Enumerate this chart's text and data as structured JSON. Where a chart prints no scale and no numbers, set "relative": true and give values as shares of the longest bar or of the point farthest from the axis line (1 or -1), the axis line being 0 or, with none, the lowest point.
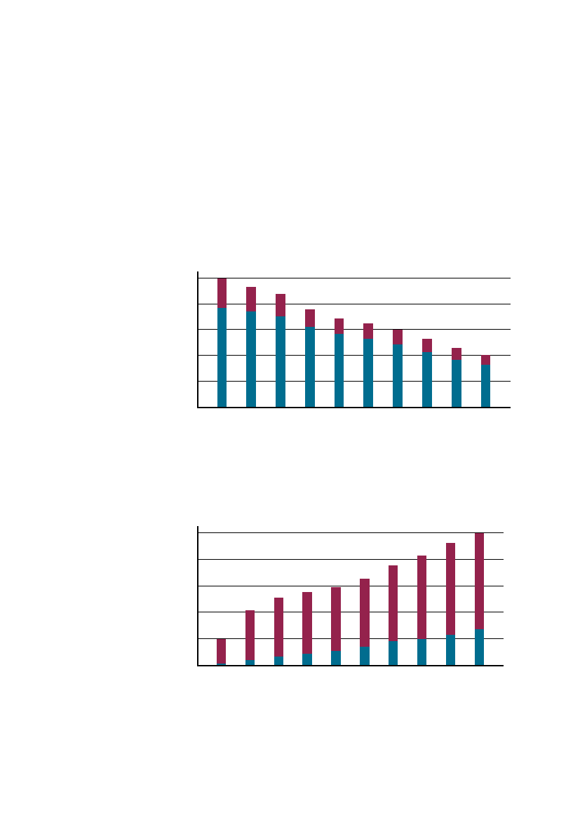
{
  "chart_data": [
    {
      "type": "bar",
      "stacked": true,
      "relative": true,
      "grid": "y",
      "categories": [
        null,
        null,
        null,
        null,
        null,
        null,
        null,
        null,
        null,
        null
      ],
      "series": [
        {
          "color": "#006d8f",
          "values": [
            0.771,
            0.742,
            0.706,
            0.62,
            0.566,
            0.53,
            0.487,
            0.425,
            0.368,
            0.329
          ]
        },
        {
          "color": "#94224c",
          "values": [
            0.229,
            0.19,
            0.17,
            0.137,
            0.119,
            0.117,
            0.114,
            0.102,
            0.088,
            0.074
          ]
        }
      ]
    },
    {
      "type": "bar",
      "stacked": true,
      "relative": true,
      "grid": "y",
      "categories": [
        null,
        null,
        null,
        null,
        null,
        null,
        null,
        null,
        null,
        null
      ],
      "series": [
        {
          "color": "#006d8f",
          "values": [
            0.012,
            0.036,
            0.065,
            0.085,
            0.105,
            0.138,
            0.182,
            0.198,
            0.231,
            0.271
          ]
        },
        {
          "color": "#94224c",
          "values": [
            0.186,
            0.377,
            0.445,
            0.47,
            0.486,
            0.518,
            0.571,
            0.632,
            0.692,
            0.729
          ]
        }
      ]
    }
  ]
}
